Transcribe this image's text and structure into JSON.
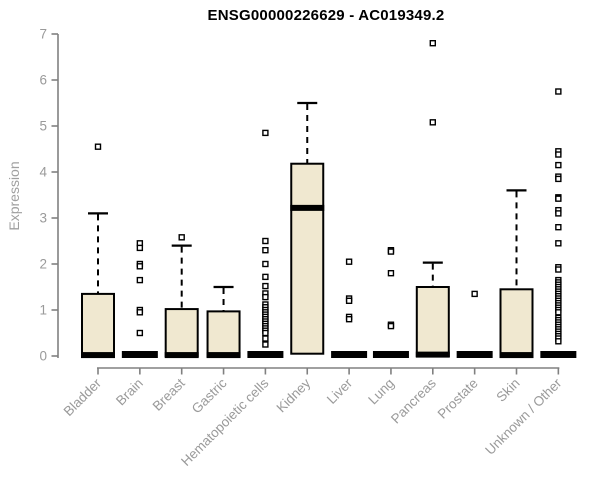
{
  "chart_data": {
    "type": "box",
    "title": "ENSG00000226629 - AC019349.2",
    "ylabel": "Expression",
    "ylim": [
      0,
      7
    ],
    "yticks": [
      0,
      1,
      2,
      3,
      4,
      5,
      6,
      7
    ],
    "grid": false,
    "legend": "none",
    "categories": [
      "Bladder",
      "Brain",
      "Breast",
      "Gastric",
      "Hematopoietic cells",
      "Kidney",
      "Liver",
      "Lung",
      "Pancreas",
      "Prostate",
      "Skin",
      "Unknown / Other"
    ],
    "boxes": [
      {
        "category": "Bladder",
        "q1": 0,
        "median": 0.02,
        "q3": 1.35,
        "whisker_low": 0,
        "whisker_high": 3.1,
        "outliers": [
          4.55
        ]
      },
      {
        "category": "Brain",
        "q1": 0,
        "median": 0,
        "q3": 0,
        "whisker_low": 0,
        "whisker_high": 0,
        "outliers": [
          2.45,
          2.35,
          2.0,
          1.95,
          1.65,
          1.0,
          0.95,
          0.5
        ]
      },
      {
        "category": "Breast",
        "q1": 0,
        "median": 0.02,
        "q3": 1.02,
        "whisker_low": 0,
        "whisker_high": 2.4,
        "outliers": [
          2.58
        ]
      },
      {
        "category": "Gastric",
        "q1": 0,
        "median": 0.02,
        "q3": 0.97,
        "whisker_low": 0,
        "whisker_high": 1.5,
        "outliers": []
      },
      {
        "category": "Hematopoietic cells",
        "q1": 0,
        "median": 0,
        "q3": 0,
        "whisker_low": 0,
        "whisker_high": 0,
        "outliers": [
          4.85,
          2.5,
          2.3,
          2.0,
          1.72,
          1.52,
          1.36,
          1.28,
          1.12,
          1.06,
          1.0,
          0.95,
          0.9,
          0.85,
          0.8,
          0.75,
          0.7,
          0.65,
          0.6,
          0.55,
          0.5,
          0.38,
          0.25
        ]
      },
      {
        "category": "Kidney",
        "q1": 0.05,
        "median": 3.22,
        "q3": 4.18,
        "whisker_low": 0.05,
        "whisker_high": 5.5,
        "outliers": []
      },
      {
        "category": "Liver",
        "q1": 0,
        "median": 0,
        "q3": 0,
        "whisker_low": 0,
        "whisker_high": 0,
        "outliers": [
          2.05,
          1.25,
          1.2,
          0.85,
          0.8
        ]
      },
      {
        "category": "Lung",
        "q1": 0,
        "median": 0,
        "q3": 0,
        "whisker_low": 0,
        "whisker_high": 0,
        "outliers": [
          2.3,
          2.27,
          1.8,
          0.68,
          0.65
        ]
      },
      {
        "category": "Pancreas",
        "q1": 0,
        "median": 0.03,
        "q3": 1.5,
        "whisker_low": 0,
        "whisker_high": 2.03,
        "outliers": [
          6.8,
          5.08
        ]
      },
      {
        "category": "Prostate",
        "q1": 0,
        "median": 0,
        "q3": 0,
        "whisker_low": 0,
        "whisker_high": 0,
        "outliers": [
          1.35
        ]
      },
      {
        "category": "Skin",
        "q1": 0,
        "median": 0.02,
        "q3": 1.45,
        "whisker_low": 0,
        "whisker_high": 3.6,
        "outliers": []
      },
      {
        "category": "Unknown / Other",
        "q1": 0,
        "median": 0,
        "q3": 0,
        "whisker_low": 0,
        "whisker_high": 0,
        "outliers": [
          5.75,
          4.45,
          4.38,
          4.15,
          3.9,
          3.85,
          3.45,
          3.42,
          3.17,
          3.1,
          2.8,
          2.45,
          1.93,
          1.88,
          1.65,
          1.6,
          1.55,
          1.5,
          1.45,
          1.4,
          1.35,
          1.3,
          1.25,
          1.2,
          1.15,
          1.1,
          1.05,
          1.0,
          0.95,
          0.83,
          0.78,
          0.73,
          0.68,
          0.63,
          0.58,
          0.53,
          0.48,
          0.43,
          0.38,
          0.32
        ]
      }
    ],
    "colors": {
      "box_fill": "#F0E8D0",
      "box_stroke": "#000000",
      "median": "#000000",
      "whisker": "#000000",
      "outlier_stroke": "#000000",
      "axis": "#808080",
      "tick_label": "#9A9A9A",
      "title": "#000000",
      "background": "#FFFFFF"
    }
  }
}
